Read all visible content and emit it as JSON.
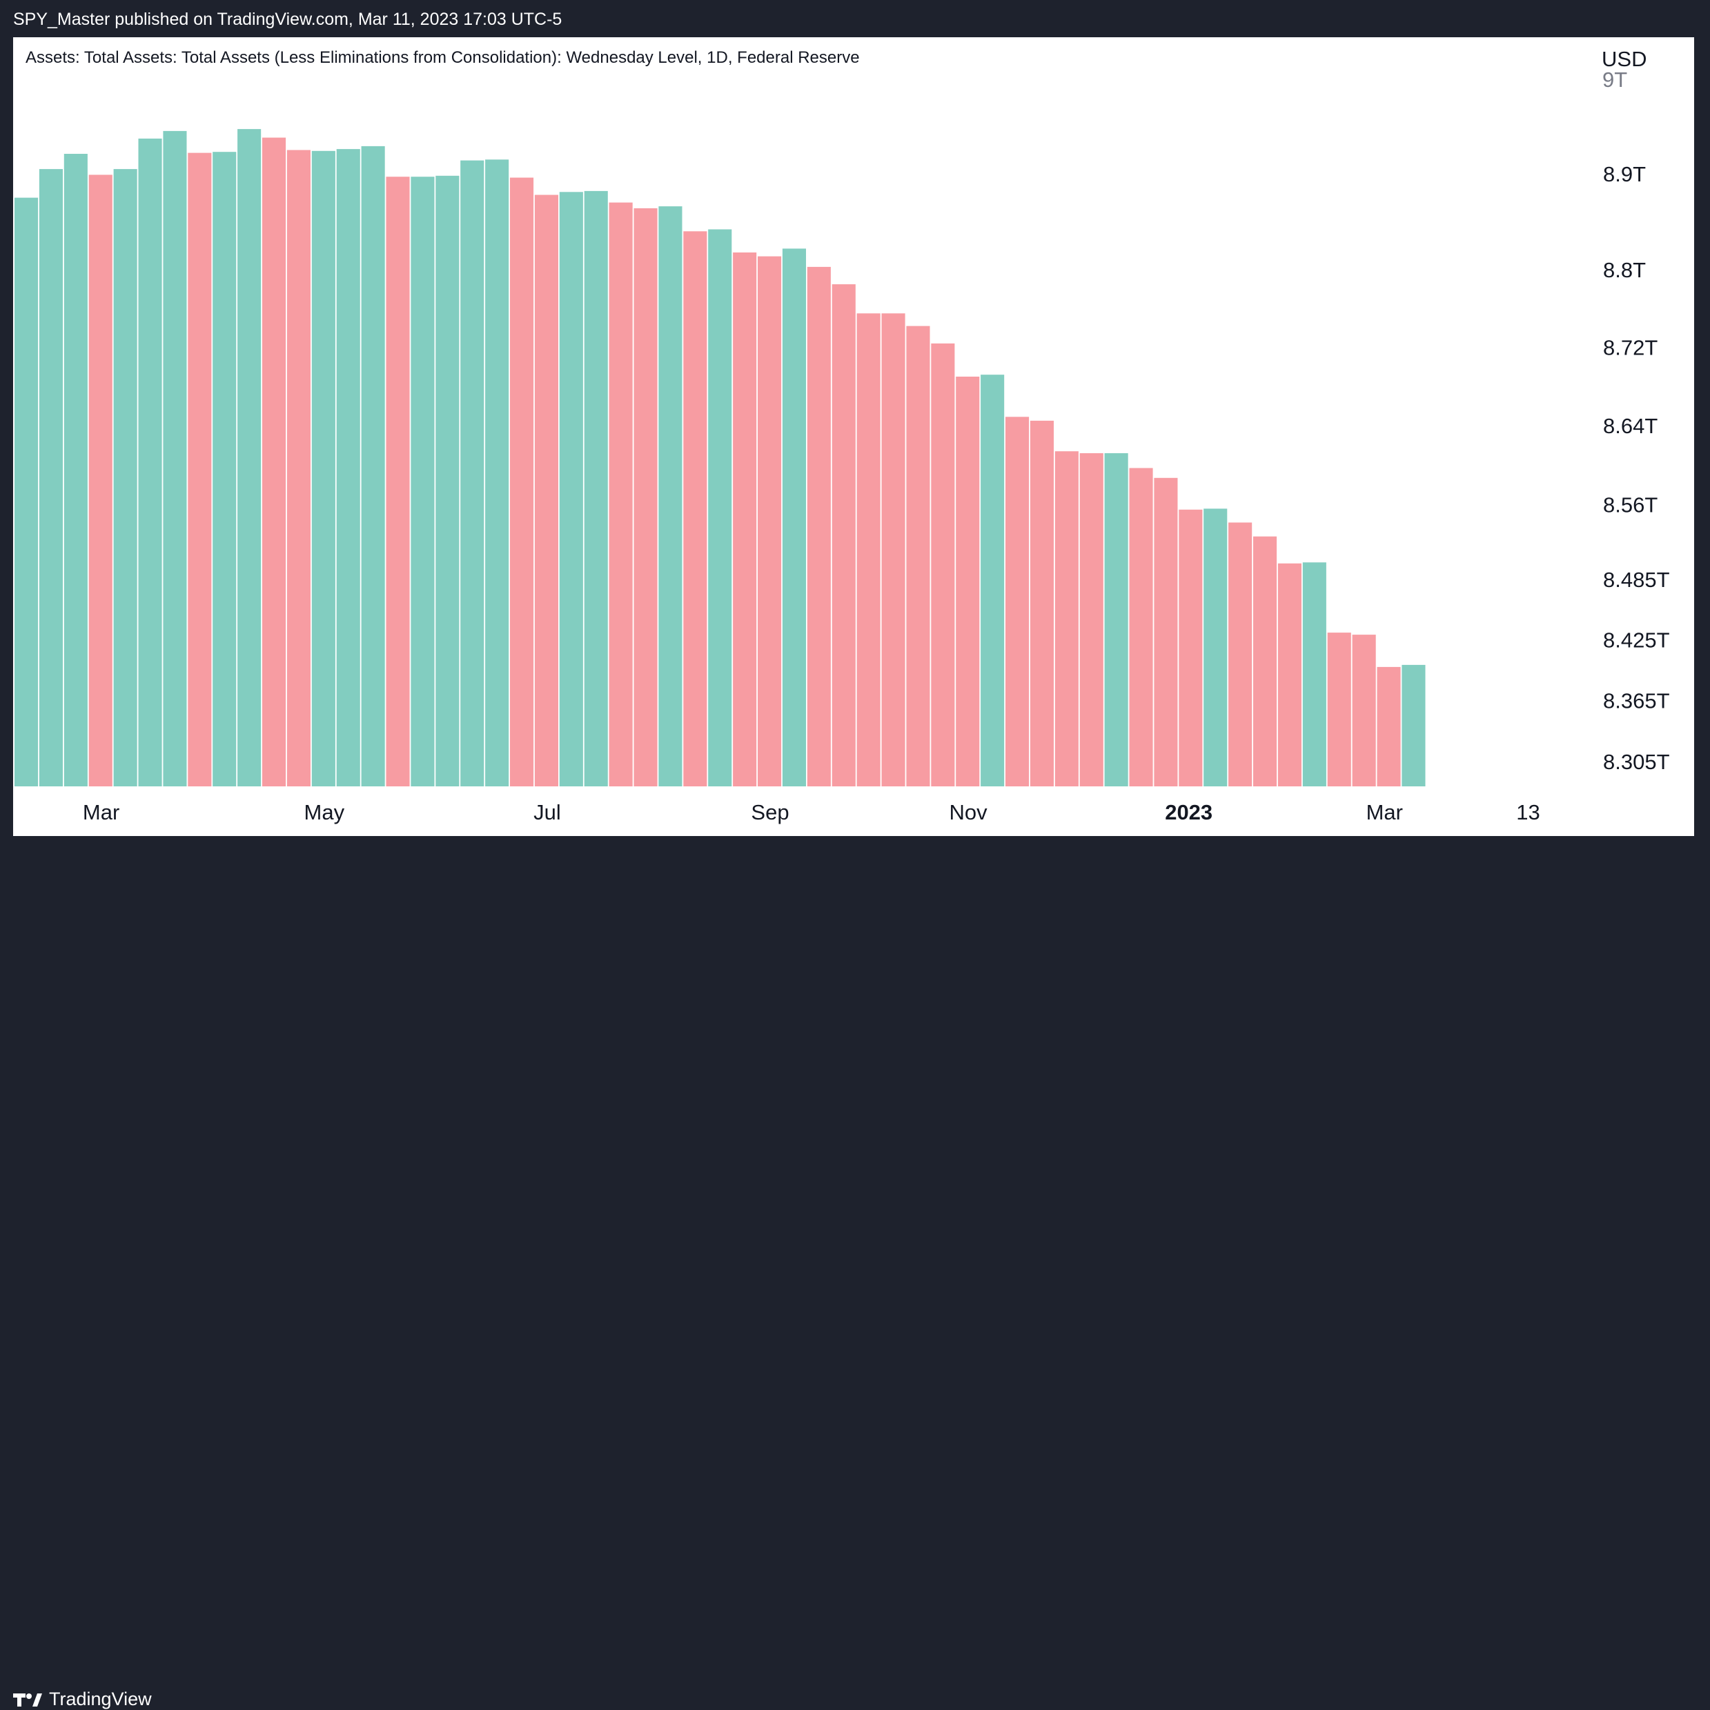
{
  "header": {
    "published_by": "SPY_Master published on TradingView.com, Mar 11, 2023 17:03 UTC-5"
  },
  "chart_panel": {
    "title": "Assets: Total Assets: Total Assets (Less Eliminations from Consolidation): Wednesday Level, 1D, Federal Reserve",
    "currency": "USD",
    "clipped_top_label": "9T"
  },
  "footer": {
    "logo_icon": "tradingview-logo-icon",
    "brand": "TradingView"
  },
  "colors": {
    "up": "#82cdc0",
    "down": "#f79ca2",
    "background": "#1e222d",
    "panel": "#ffffff",
    "text": "#131722"
  },
  "chart_data": {
    "type": "bar",
    "title": "Assets: Total Assets: Total Assets (Less Eliminations from Consolidation): Wednesday Level, 1D, Federal Reserve",
    "xlabel": "",
    "ylabel": "USD",
    "y_scale": "log",
    "ylim": [
      8.262,
      9.02
    ],
    "grid": false,
    "legend": "none",
    "y_ticks": [
      {
        "value": 8.9,
        "label": "8.9T"
      },
      {
        "value": 8.8,
        "label": "8.8T"
      },
      {
        "value": 8.72,
        "label": "8.72T"
      },
      {
        "value": 8.64,
        "label": "8.64T"
      },
      {
        "value": 8.56,
        "label": "8.56T"
      },
      {
        "value": 8.485,
        "label": "8.485T"
      },
      {
        "value": 8.425,
        "label": "8.425T"
      },
      {
        "value": 8.365,
        "label": "8.365T"
      },
      {
        "value": 8.305,
        "label": "8.305T"
      }
    ],
    "x_ticks": [
      {
        "label": "Mar",
        "bar_index": 3.5,
        "bold": false
      },
      {
        "label": "May",
        "bar_index": 12.5,
        "bold": false
      },
      {
        "label": "Jul",
        "bar_index": 21.5,
        "bold": false
      },
      {
        "label": "Sep",
        "bar_index": 30.5,
        "bold": false
      },
      {
        "label": "Nov",
        "bar_index": 38.5,
        "bold": false
      },
      {
        "label": "2023",
        "bar_index": 47.4,
        "bold": true
      },
      {
        "label": "Mar",
        "bar_index": 55.3,
        "bold": false
      },
      {
        "label": "13",
        "bar_index": 61.1,
        "bold": false
      }
    ],
    "series": [
      {
        "values": [
          8.875,
          8.905,
          8.921,
          8.899,
          8.905,
          8.937,
          8.945,
          8.922,
          8.923,
          8.947,
          8.938,
          8.925,
          8.924,
          8.926,
          8.929,
          8.897,
          8.897,
          8.898,
          8.914,
          8.915,
          8.896,
          8.878,
          8.881,
          8.882,
          8.87,
          8.864,
          8.866,
          8.84,
          8.842,
          8.818,
          8.814,
          8.822,
          8.803,
          8.785,
          8.755,
          8.755,
          8.742,
          8.724,
          8.69,
          8.692,
          8.649,
          8.645,
          8.614,
          8.612,
          8.612,
          8.597,
          8.587,
          8.555,
          8.556,
          8.542,
          8.528,
          8.501,
          8.502,
          8.432,
          8.43,
          8.398,
          8.4
        ],
        "direction": [
          "up",
          "up",
          "up",
          "down",
          "up",
          "up",
          "up",
          "down",
          "up",
          "up",
          "down",
          "down",
          "up",
          "up",
          "up",
          "down",
          "up",
          "up",
          "up",
          "up",
          "down",
          "down",
          "up",
          "up",
          "down",
          "down",
          "up",
          "down",
          "up",
          "down",
          "down",
          "up",
          "down",
          "down",
          "down",
          "down",
          "down",
          "down",
          "down",
          "up",
          "down",
          "down",
          "down",
          "down",
          "up",
          "down",
          "down",
          "down",
          "up",
          "down",
          "down",
          "down",
          "up",
          "down",
          "down",
          "down",
          "up"
        ]
      }
    ]
  }
}
